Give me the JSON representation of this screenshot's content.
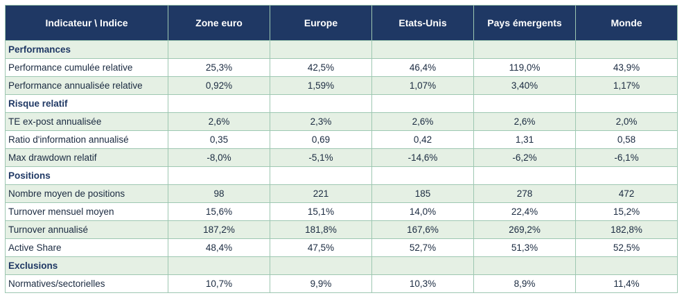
{
  "header": [
    "Indicateur \\ Indice",
    "Zone euro",
    "Europe",
    "Etats-Unis",
    "Pays émergents",
    "Monde"
  ],
  "rows": [
    {
      "type": "section",
      "label": "Performances",
      "values": [
        "",
        "",
        "",
        "",
        ""
      ]
    },
    {
      "type": "data",
      "label": "Performance cumulée relative",
      "values": [
        "25,3%",
        "42,5%",
        "46,4%",
        "119,0%",
        "43,9%"
      ]
    },
    {
      "type": "data",
      "label": "Performance annualisée relative",
      "values": [
        "0,92%",
        "1,59%",
        "1,07%",
        "3,40%",
        "1,17%"
      ]
    },
    {
      "type": "section",
      "label": "Risque relatif",
      "values": [
        "",
        "",
        "",
        "",
        ""
      ]
    },
    {
      "type": "data",
      "label": "TE ex-post annualisée",
      "values": [
        "2,6%",
        "2,3%",
        "2,6%",
        "2,6%",
        "2,0%"
      ]
    },
    {
      "type": "data",
      "label": "Ratio d'information annualisé",
      "values": [
        "0,35",
        "0,69",
        "0,42",
        "1,31",
        "0,58"
      ]
    },
    {
      "type": "data",
      "label": "Max drawdown relatif",
      "values": [
        "-8,0%",
        "-5,1%",
        "-14,6%",
        "-6,2%",
        "-6,1%"
      ]
    },
    {
      "type": "section",
      "label": "Positions",
      "values": [
        "",
        "",
        "",
        "",
        ""
      ]
    },
    {
      "type": "data",
      "label": "Nombre moyen de positions",
      "values": [
        "98",
        "221",
        "185",
        "278",
        "472"
      ]
    },
    {
      "type": "data",
      "label": "Turnover mensuel moyen",
      "values": [
        "15,6%",
        "15,1%",
        "14,0%",
        "22,4%",
        "15,2%"
      ]
    },
    {
      "type": "data",
      "label": "Turnover annualisé",
      "values": [
        "187,2%",
        "181,8%",
        "167,6%",
        "269,2%",
        "182,8%"
      ]
    },
    {
      "type": "data",
      "label": "Active Share",
      "values": [
        "48,4%",
        "47,5%",
        "52,7%",
        "51,3%",
        "52,5%"
      ]
    },
    {
      "type": "section",
      "label": "Exclusions",
      "values": [
        "",
        "",
        "",
        "",
        ""
      ]
    },
    {
      "type": "data",
      "label": "Normatives/sectorielles",
      "values": [
        "10,7%",
        "9,9%",
        "10,3%",
        "8,9%",
        "11,4%"
      ]
    }
  ],
  "colors": {
    "header_bg": "#1f3864",
    "alt_row_bg": "#e5f0e4",
    "border": "#9dc7b1"
  }
}
